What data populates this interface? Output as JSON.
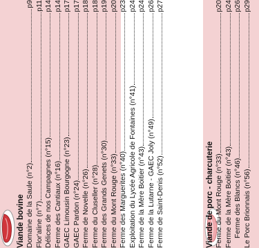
{
  "beef": {
    "title": "Viande bovine",
    "icon": "beef-cut-icon",
    "colors": {
      "panel": "#f4d2d3",
      "meat": "#d0353b"
    },
    "items": [
      {
        "label": "Domaine de la Saule (n°2)",
        "page": "p9"
      },
      {
        "label": "Flor'aline (n°7)",
        "page": "p11"
      },
      {
        "label": "Délices de nos Campagnes (n°15)",
        "page": "p14"
      },
      {
        "label": "Ferme des Cantiaux (n°16)",
        "page": "p14"
      },
      {
        "label": "GAEC Limousin Bourgogne (n°23)",
        "page": "p17"
      },
      {
        "label": "GAEC Pardon (n°24)",
        "page": "p17"
      },
      {
        "label": "Ferme de Novelle (n°26)",
        "page": "p18"
      },
      {
        "label": "Ferme du Cluseller (n°28)",
        "page": "p18"
      },
      {
        "label": "Ferme des Grands Genets (n°30)",
        "page": "p19"
      },
      {
        "label": "Ferme du Mont Rouge (n°33)",
        "page": "p20"
      },
      {
        "label": "Ferme des Marguerites (n°40)",
        "page": "p23"
      },
      {
        "label": "Exploitation du Lycée Agricole de Fontaines (n°41)",
        "page": "p24"
      },
      {
        "label": "Ferme de la Mère Boitier (n°43)",
        "page": "p24"
      },
      {
        "label": "Ferme de la Lutarne - GAEC Joly (n°49)",
        "page": "p26"
      },
      {
        "label": "Ferme de Saint-Denis (n°52)",
        "page": "p27"
      }
    ]
  },
  "pork": {
    "title": "Viande de porc - charcuterie",
    "icon": "pork-cut-icon",
    "colors": {
      "panel": "#f4d2d3",
      "meat": "#f0a9ad"
    },
    "items": [
      {
        "label": "Ferme du Mont Rouge (n°33)",
        "page": "p20",
        "indent": false
      },
      {
        "label": "Ferme de la Mère Boitier (n°43)",
        "page": "p24",
        "indent": false
      },
      {
        "label": "Ferme des Blancs (n°46)",
        "page": "p26",
        "indent": true
      },
      {
        "label": "Le Porc Brionnais (n°56)",
        "page": "p29",
        "indent": false
      }
    ]
  }
}
